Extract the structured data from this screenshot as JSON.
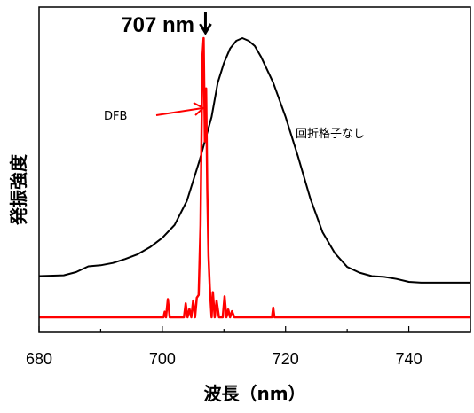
{
  "chart_data": {
    "type": "line",
    "title": "",
    "xlabel": "波長（nm）",
    "ylabel": "発振強度",
    "xlim": [
      680,
      750
    ],
    "ylim": [
      0,
      1
    ],
    "xticks": [
      680,
      700,
      720,
      740
    ],
    "y_tick_labels_shown": false,
    "grid": false,
    "series": [
      {
        "name": "回折格子なし",
        "color": "#000000",
        "x": [
          680,
          684,
          686,
          688,
          690,
          692,
          694,
          696,
          698,
          700,
          702,
          704,
          706,
          708,
          709,
          710,
          711,
          712,
          713,
          714,
          715,
          716,
          718,
          720,
          722,
          724,
          726,
          728,
          730,
          732,
          734,
          736,
          738,
          740,
          742,
          744,
          746,
          748,
          750
        ],
        "y": [
          0.093,
          0.096,
          0.108,
          0.13,
          0.134,
          0.143,
          0.158,
          0.176,
          0.203,
          0.239,
          0.288,
          0.38,
          0.53,
          0.7,
          0.83,
          0.905,
          0.96,
          0.99,
          1.0,
          0.99,
          0.97,
          0.93,
          0.83,
          0.7,
          0.55,
          0.39,
          0.26,
          0.18,
          0.128,
          0.106,
          0.093,
          0.09,
          0.082,
          0.071,
          0.068,
          0.068,
          0.068,
          0.068,
          0.068
        ]
      },
      {
        "name": "DFB",
        "color": "#ff0000",
        "x": [
          680,
          700.2,
          700.4,
          700.6,
          700.9,
          701.2,
          703.5,
          703.8,
          704.1,
          704.4,
          704.7,
          705.0,
          705.3,
          705.6,
          705.9,
          706.2,
          706.5,
          706.7,
          706.9,
          707.1,
          707.3,
          707.5,
          707.7,
          708.0,
          708.2,
          708.5,
          708.8,
          709.2,
          709.8,
          710.1,
          710.4,
          710.7,
          711.0,
          711.3,
          711.7,
          712.0,
          717.8,
          718.0,
          718.2,
          750
        ],
        "y": [
          0.0,
          0.0,
          0.02,
          0.0,
          0.065,
          0.0,
          0.0,
          0.05,
          0.0,
          0.03,
          0.0,
          0.06,
          0.0,
          0.07,
          0.08,
          0.33,
          0.93,
          1.0,
          0.63,
          0.82,
          0.46,
          0.22,
          0.11,
          0.0,
          0.09,
          0.0,
          0.06,
          0.0,
          0.0,
          0.075,
          0.0,
          0.028,
          0.0,
          0.022,
          0.0,
          0.0,
          0.0,
          0.035,
          0.0,
          0.0
        ]
      }
    ],
    "annotations": [
      {
        "text": "707 nm",
        "arrow": "down",
        "x": 707,
        "y": 1.0
      },
      {
        "text": "DFB",
        "arrow": "right",
        "target_series": "DFB"
      },
      {
        "text": "回折格子なし",
        "target_series": "回折格子なし"
      }
    ]
  }
}
